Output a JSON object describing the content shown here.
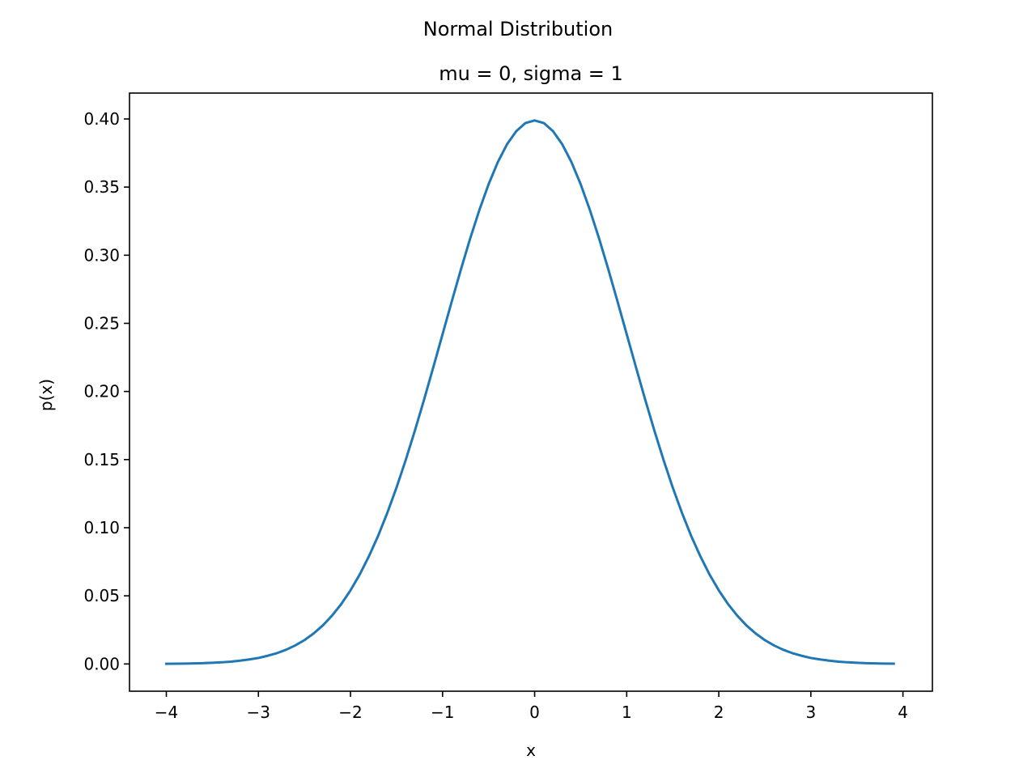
{
  "chart_data": {
    "type": "line",
    "suptitle": "Normal Distribution",
    "title": "mu = 0, sigma = 1",
    "xlabel": "x",
    "ylabel": "p(x)",
    "xlim": [
      -4.4,
      4.32
    ],
    "ylim": [
      -0.02,
      0.419
    ],
    "xticks": [
      -4,
      -3,
      -2,
      -1,
      0,
      1,
      2,
      3,
      4
    ],
    "xtick_labels": [
      "−4",
      "−3",
      "−2",
      "−1",
      "0",
      "1",
      "2",
      "3",
      "4"
    ],
    "yticks": [
      0.0,
      0.05,
      0.1,
      0.15,
      0.2,
      0.25,
      0.3,
      0.35,
      0.4
    ],
    "ytick_labels": [
      "0.00",
      "0.05",
      "0.10",
      "0.15",
      "0.20",
      "0.25",
      "0.30",
      "0.35",
      "0.40"
    ],
    "grid": false,
    "line_color": "#1f77b4",
    "series": [
      {
        "x": [
          -4.0,
          -3.9,
          -3.8,
          -3.7,
          -3.6,
          -3.5,
          -3.4,
          -3.3,
          -3.2,
          -3.1,
          -3.0,
          -2.9,
          -2.8,
          -2.7,
          -2.6,
          -2.5,
          -2.4,
          -2.3,
          -2.2,
          -2.1,
          -2.0,
          -1.9,
          -1.8,
          -1.7,
          -1.6,
          -1.5,
          -1.4,
          -1.3,
          -1.2,
          -1.1,
          -1.0,
          -0.9,
          -0.8,
          -0.7,
          -0.6,
          -0.5,
          -0.4,
          -0.3,
          -0.2,
          -0.1,
          0.0,
          0.1,
          0.2,
          0.3,
          0.4,
          0.5,
          0.6,
          0.7,
          0.8,
          0.9,
          1.0,
          1.1,
          1.2,
          1.3,
          1.4,
          1.5,
          1.6,
          1.7,
          1.8,
          1.9,
          2.0,
          2.1,
          2.2,
          2.3,
          2.4,
          2.5,
          2.6,
          2.7,
          2.8,
          2.9,
          3.0,
          3.1,
          3.2,
          3.3,
          3.4,
          3.5,
          3.6,
          3.7,
          3.8,
          3.9
        ],
        "y": [
          0.0001,
          0.0002,
          0.0003,
          0.0004,
          0.0006,
          0.0009,
          0.0012,
          0.0017,
          0.0024,
          0.0033,
          0.0044,
          0.006,
          0.0079,
          0.0104,
          0.0136,
          0.0175,
          0.0224,
          0.0283,
          0.0355,
          0.044,
          0.054,
          0.0656,
          0.079,
          0.094,
          0.1109,
          0.1295,
          0.1497,
          0.1714,
          0.1942,
          0.2179,
          0.242,
          0.2661,
          0.2897,
          0.3123,
          0.3332,
          0.3521,
          0.3683,
          0.3814,
          0.391,
          0.397,
          0.3989,
          0.397,
          0.391,
          0.3814,
          0.3683,
          0.3521,
          0.3332,
          0.3123,
          0.2897,
          0.2661,
          0.242,
          0.2179,
          0.1942,
          0.1714,
          0.1497,
          0.1295,
          0.1109,
          0.094,
          0.079,
          0.0656,
          0.054,
          0.044,
          0.0355,
          0.0283,
          0.0224,
          0.0175,
          0.0136,
          0.0104,
          0.0079,
          0.006,
          0.0044,
          0.0033,
          0.0024,
          0.0017,
          0.0012,
          0.0009,
          0.0006,
          0.0004,
          0.0003,
          0.0002
        ]
      }
    ]
  }
}
